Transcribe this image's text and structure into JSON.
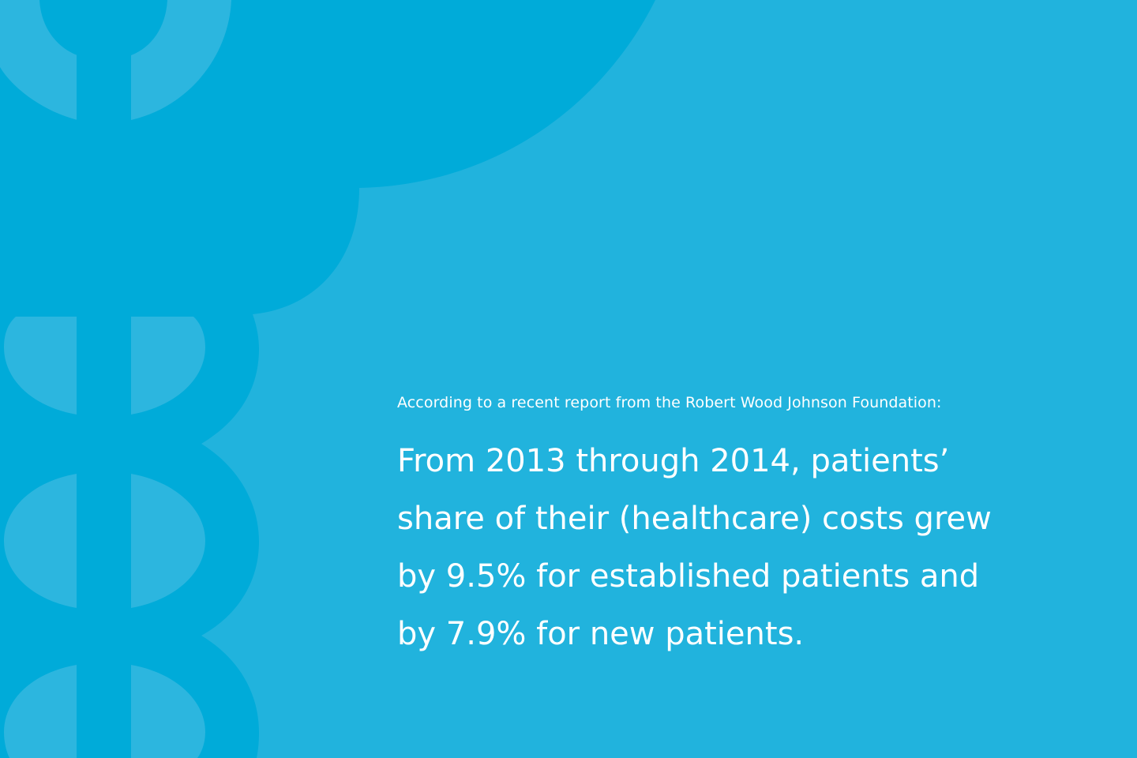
{
  "colors": {
    "background": "#21b3dd",
    "emblem_dark": "#00abd9",
    "emblem_light": "#2cb6df",
    "text": "#ffffff"
  },
  "emblem": {
    "icon": "caduceus-icon"
  },
  "intro_text": "According to a recent report from the Robert Wood Johnson Foundation:",
  "quote_lines": [
    "From 2013 through 2014, patients’",
    "share of their (healthcare) costs grew",
    "by 9.5% for established patients and",
    "by 7.9% for new patients."
  ]
}
